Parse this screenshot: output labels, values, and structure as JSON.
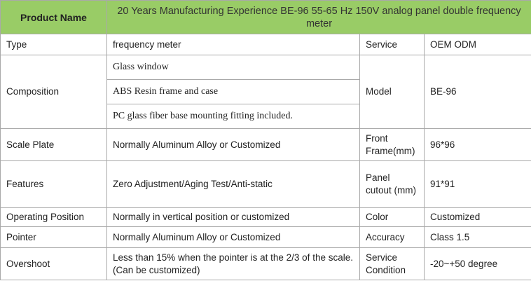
{
  "header": {
    "label": "Product Name",
    "title": "20 Years Manufacturing Experience BE-96 55-65 Hz 150V analog panel double frequency meter"
  },
  "rows": [
    {
      "label": "Type",
      "value": "frequency meter",
      "label2": "Service",
      "value2": "OEM ODM"
    },
    {
      "label": "Composition",
      "items": [
        "Glass window",
        "ABS Resin frame and case",
        "PC glass fiber base mounting fitting included."
      ],
      "label2": "Model",
      "value2": "BE-96"
    },
    {
      "label": "Scale Plate",
      "value": "Normally Aluminum Alloy or Customized",
      "label2": "Front Frame(mm)",
      "value2": "96*96"
    },
    {
      "label": "Features",
      "value": "Zero Adjustment/Aging Test/Anti-static",
      "label2": "Panel cutout (mm)",
      "value2": "91*91"
    },
    {
      "label": "Operating Position",
      "value": "Normally in vertical position or customized",
      "label2": "Color",
      "value2": "Customized"
    },
    {
      "label": "Pointer",
      "value": "Normally Aluminum Alloy or Customized",
      "label2": "Accuracy",
      "value2": "Class 1.5"
    },
    {
      "label": "Overshoot",
      "value": "Less than 15% when the pointer is at the 2/3 of the scale.(Can be customized)",
      "label2": "Service Condition",
      "value2": "-20~+50 degree"
    }
  ]
}
